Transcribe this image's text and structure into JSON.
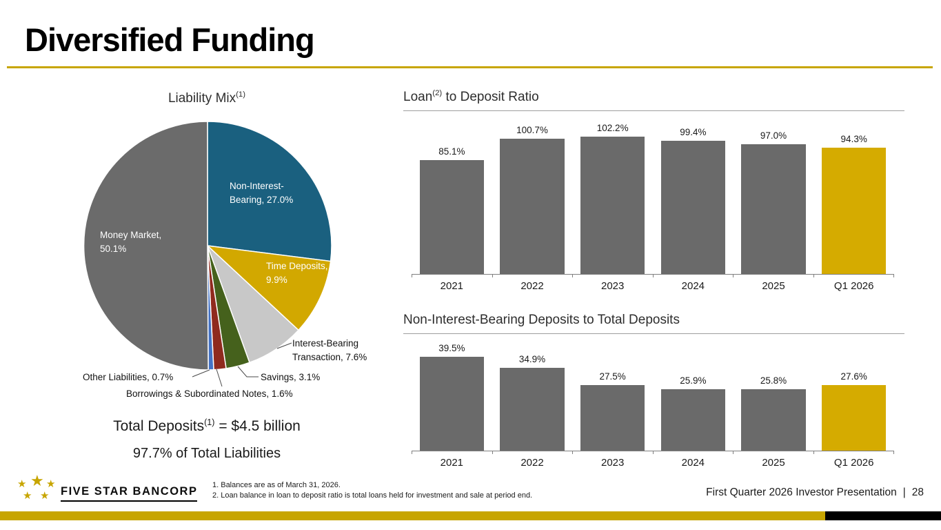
{
  "slide": {
    "title": "Diversified Funding",
    "footer": {
      "logo_text": "FIVE STAR BANCORP",
      "footnote_1": "1. Balances are as of March 31, 2026.",
      "footnote_2": "2. Loan balance in loan to deposit ratio is total loans held for investment and sale at period end.",
      "presentation_label": "First Quarter 2026 Investor Presentation",
      "divider": "|",
      "page_number": "28"
    },
    "colors": {
      "accent_gold": "#C7A500",
      "highlight_gold": "#D5AB00",
      "bar_gray": "#6A6A6A",
      "footer_black": "#000000"
    }
  },
  "chart_data": [
    {
      "type": "pie",
      "title_main": "Liability Mix",
      "title_sup": "(1)",
      "slices": [
        {
          "label": "Non-Interest-Bearing",
          "value": 27.0,
          "display": "Non-Interest-Bearing, 27.0%",
          "color": "#1A607F"
        },
        {
          "label": "Time Deposits",
          "value": 9.9,
          "display": "Time Deposits, 9.9%",
          "color": "#D2A800"
        },
        {
          "label": "Interest-Bearing Transaction",
          "value": 7.6,
          "display": "Interest-Bearing Transaction, 7.6%",
          "color": "#C8C8C8"
        },
        {
          "label": "Savings",
          "value": 3.1,
          "display": "Savings, 3.1%",
          "color": "#45611C"
        },
        {
          "label": "Borrowings & Subordinated Notes",
          "value": 1.6,
          "display": "Borrowings & Subordinated Notes, 1.6%",
          "color": "#8F2A1E"
        },
        {
          "label": "Other Liabilities",
          "value": 0.7,
          "display": "Other Liabilities, 0.7%",
          "color": "#4472C4"
        },
        {
          "label": "Money Market",
          "value": 50.1,
          "display": "Money Market, 50.1%",
          "color": "#6B6B6B"
        }
      ],
      "note1_main": "Total Deposits",
      "note1_sup": "(1)",
      "note1_rest": " = $4.5 billion",
      "note2": "97.7% of Total Liabilities"
    },
    {
      "type": "bar",
      "title_main": "Loan",
      "title_sup": "(2)",
      "title_rest": " to Deposit Ratio",
      "categories": [
        "2021",
        "2022",
        "2023",
        "2024",
        "2025",
        "Q1 2026"
      ],
      "values": [
        85.1,
        100.7,
        102.2,
        99.4,
        97.0,
        94.3
      ],
      "value_labels": [
        "85.1%",
        "100.7%",
        "102.2%",
        "99.4%",
        "97.0%",
        "94.3%"
      ],
      "bar_color": "#6A6A6A",
      "highlight_color": "#D5AB00",
      "highlight_index": 5,
      "ylim": [
        0,
        105
      ],
      "grid": false,
      "legend": false
    },
    {
      "type": "bar",
      "title_main": "Non-Interest-Bearing Deposits to Total Deposits",
      "title_sup": "",
      "title_rest": "",
      "categories": [
        "2021",
        "2022",
        "2023",
        "2024",
        "2025",
        "Q1 2026"
      ],
      "values": [
        39.5,
        34.9,
        27.5,
        25.9,
        25.8,
        27.6
      ],
      "value_labels": [
        "39.5%",
        "34.9%",
        "27.5%",
        "25.9%",
        "25.8%",
        "27.6%"
      ],
      "bar_color": "#6A6A6A",
      "highlight_color": "#D5AB00",
      "highlight_index": 5,
      "ylim": [
        0,
        40
      ],
      "grid": false,
      "legend": false
    }
  ]
}
